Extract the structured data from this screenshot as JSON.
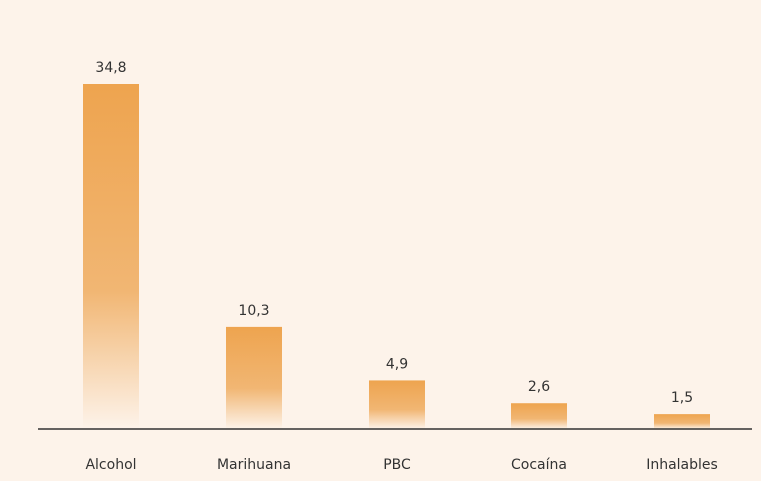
{
  "colors": {
    "background": "#fdf3ea",
    "bar_top": "#eea44f",
    "bar_bottom": "#fdf3ea",
    "axis": "#333333",
    "text": "#333333"
  },
  "chart_data": {
    "type": "bar",
    "categories": [
      "Alcohol",
      "Marihuana",
      "PBC",
      "Cocaína",
      "Inhalables"
    ],
    "values": [
      34.8,
      10.3,
      4.9,
      2.6,
      1.5
    ],
    "value_labels": [
      "34,8",
      "10,3",
      "4,9",
      "2,6",
      "1,5"
    ],
    "title": "",
    "xlabel": "",
    "ylabel": "",
    "ylim": [
      0,
      34.8
    ],
    "grid": false,
    "legend": "none"
  }
}
